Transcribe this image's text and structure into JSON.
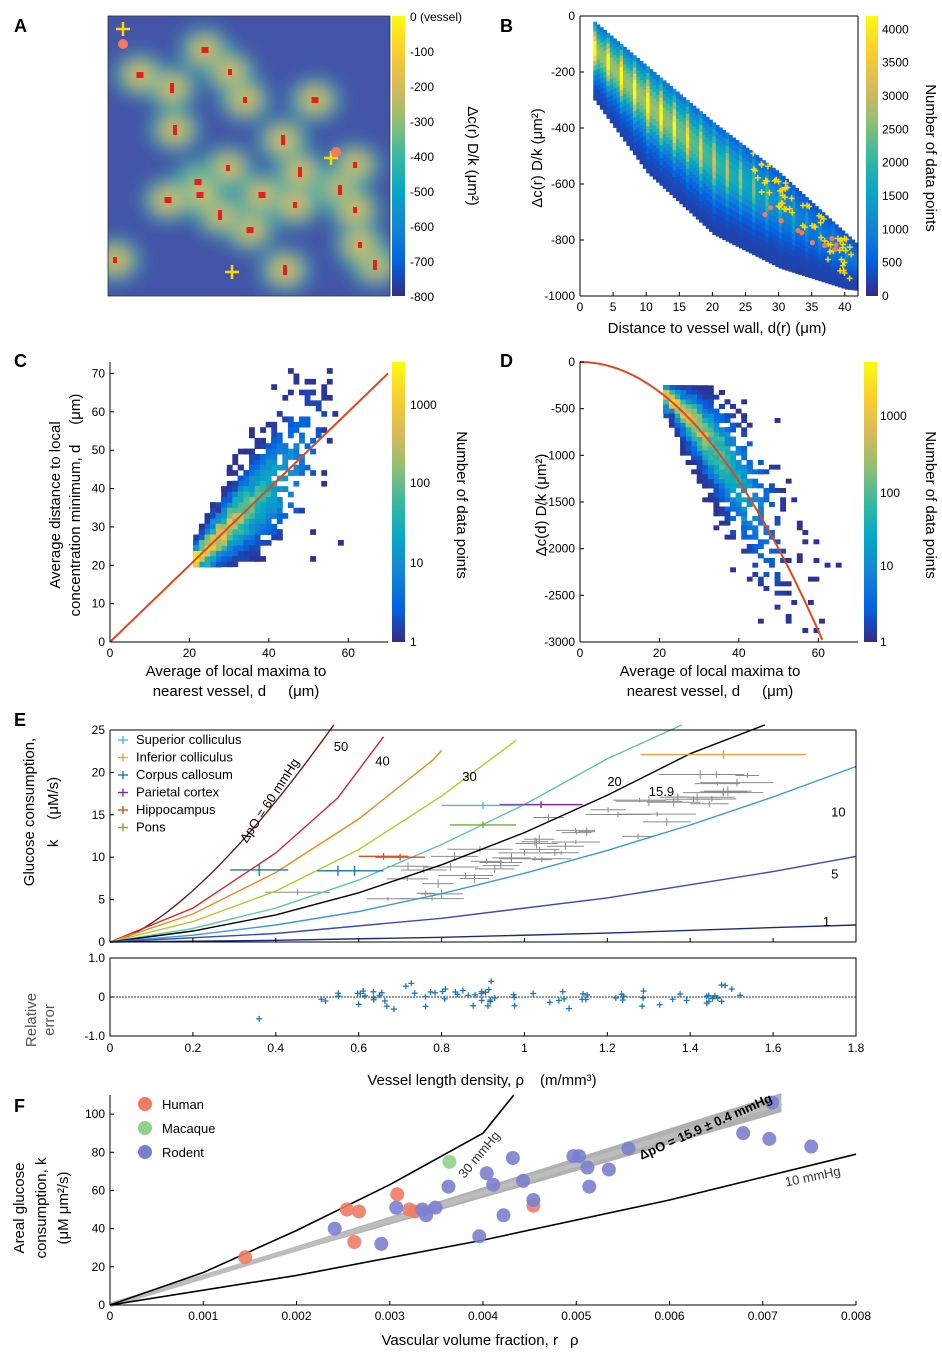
{
  "colors": {
    "parula": [
      "#352a87",
      "#0363e1",
      "#1485d4",
      "#06a7c6",
      "#38b99e",
      "#92bf73",
      "#d9ba56",
      "#fcce2e",
      "#f9fb0e"
    ],
    "orange_line": "#e2461f",
    "cross": "#ffd700",
    "dot": "#f27a5e",
    "human": "#ef7b64",
    "macaque": "#8fd28a",
    "rodent": "#7a80d0",
    "band": "#a9a9a9",
    "error_blue": "#1f77b4",
    "gray_points": "#8c8c8c"
  },
  "panels": {
    "A": {
      "label": "A",
      "colorbar_ticks": [
        "0 (vessel)",
        "-100",
        "-200",
        "-300",
        "-400",
        "-500",
        "-600",
        "-700",
        "-800"
      ],
      "colorbar_label": "Δc(r) D/k (μm²)"
    },
    "B": {
      "label": "B",
      "ylabel": "Δc(r) D/k (μm²)",
      "xlabel": "Distance to vessel wall, d(r) (μm)",
      "colorbar_label": "Number of data points"
    },
    "C": {
      "label": "C",
      "ylabel_1": "Average distance to local",
      "ylabel_2": "concentration minimum, d",
      "ylabel_unit": "(μm)",
      "xlabel_1": "Average of local maxima to",
      "xlabel_2": "nearest vessel, d",
      "xlabel_unit": "(μm)",
      "colorbar_label": "Number of data points"
    },
    "D": {
      "label": "D",
      "ylabel": "Δc(d) D/k (μm²)",
      "xlabel_1": "Average of local maxima to",
      "xlabel_2": "nearest vessel, d",
      "xlabel_unit": "(μm)",
      "colorbar_label": "Number of data points"
    },
    "E": {
      "label": "E",
      "ylabel_1": "Glucose consumption,",
      "ylabel_2": "k",
      "ylabel_unit": "(μM/s)",
      "resid_ylabel_1": "Relative",
      "resid_ylabel_2": "error",
      "xlabel": "Vessel length density,  ρ",
      "xlabel_unit": "(m/mm³)",
      "delta_label": "ΔpO = 60 mmHg",
      "legend": [
        {
          "name": "Superior colliculus",
          "color": "#4dbbd5"
        },
        {
          "name": "Inferior colliculus",
          "color": "#e8a33c"
        },
        {
          "name": "Corpus callosum",
          "color": "#1f77b4"
        },
        {
          "name": "Parietal cortex",
          "color": "#7e2f8e"
        },
        {
          "name": "Hippocampus",
          "color": "#d95319"
        },
        {
          "name": "Pons",
          "color": "#77ac30"
        }
      ]
    },
    "F": {
      "label": "F",
      "ylabel_1": "Areal glucose",
      "ylabel_2": "consumption, k",
      "ylabel_unit": "(μM μm²/s)",
      "xlabel": "Vascular volume fraction, r",
      "xlabel_unit": "ρ",
      "line_labels": [
        "30 mmHg",
        "10  mmHg",
        "ΔpO = 15.9 ± 0.4 mmHg"
      ],
      "legend": [
        {
          "name": "Human",
          "color": "#ef7b64"
        },
        {
          "name": "Macaque",
          "color": "#8fd28a"
        },
        {
          "name": "Rodent",
          "color": "#7a80d0"
        }
      ]
    }
  },
  "chart_data": [
    {
      "panel": "A",
      "type": "heatmap",
      "colorbar": {
        "min": -800,
        "max": 0,
        "ticks": [
          0,
          -100,
          -200,
          -300,
          -400,
          -500,
          -600,
          -700,
          -800
        ],
        "label": "Δc(r) D/k (μm²)"
      },
      "vessels_count": 24,
      "markers": {
        "crosses": 4,
        "dots": 2
      }
    },
    {
      "panel": "B",
      "type": "heatmap",
      "xlabel": "Distance to vessel wall, d(r) (μm)",
      "ylabel": "Δc(r) D/k (μm²)",
      "xlim": [
        0,
        42
      ],
      "ylim": [
        -1000,
        0
      ],
      "xticks": [
        0,
        5,
        10,
        15,
        20,
        25,
        30,
        35,
        40
      ],
      "yticks": [
        0,
        -200,
        -400,
        -600,
        -800,
        -1000
      ],
      "colorbar": {
        "min": 0,
        "max": 4200,
        "ticks": [
          0,
          500,
          1000,
          1500,
          2000,
          2500,
          3000,
          3500,
          4000
        ],
        "label": "Number of data points"
      },
      "band_upper": [
        [
          2,
          -20
        ],
        [
          10,
          -180
        ],
        [
          20,
          -380
        ],
        [
          30,
          -560
        ],
        [
          42,
          -820
        ]
      ],
      "band_lower": [
        [
          2,
          -300
        ],
        [
          10,
          -560
        ],
        [
          20,
          -780
        ],
        [
          30,
          -900
        ],
        [
          40,
          -975
        ],
        [
          42,
          -980
        ]
      ]
    },
    {
      "panel": "C",
      "type": "heatmap",
      "xlim": [
        0,
        70
      ],
      "ylim": [
        0,
        73
      ],
      "xticks": [
        0,
        20,
        40,
        60
      ],
      "yticks": [
        0,
        10,
        20,
        30,
        40,
        50,
        60,
        70
      ],
      "fit_line": [
        [
          0,
          0
        ],
        [
          70,
          70
        ]
      ],
      "colorbar": {
        "scale": "log",
        "ticks": [
          1,
          10,
          100,
          1000
        ],
        "label": "Number of data points"
      }
    },
    {
      "panel": "D",
      "type": "heatmap",
      "xlim": [
        0,
        70
      ],
      "ylim": [
        -3000,
        0
      ],
      "xticks": [
        0,
        20,
        40,
        60
      ],
      "yticks": [
        0,
        -500,
        -1000,
        -1500,
        -2000,
        -2500,
        -3000
      ],
      "fit_curve": "y = -0.8 x^2",
      "colorbar": {
        "scale": "log",
        "ticks": [
          1,
          10,
          100,
          1000
        ],
        "label": "Number of data points"
      }
    },
    {
      "panel": "E",
      "type": "line",
      "xlabel": "Vessel length density,  ρL (m/mm³)",
      "ylabel": "Glucose consumption, kglu (μM/s)",
      "xlim": [
        0,
        1.8
      ],
      "ylim": [
        0,
        25
      ],
      "xticks": [
        0,
        0.2,
        0.4,
        0.6,
        0.8,
        1,
        1.2,
        1.4,
        1.6,
        1.8
      ],
      "yticks": [
        0,
        5,
        10,
        15,
        20,
        25
      ],
      "series": [
        {
          "name": "60",
          "color": "#6b1d1d",
          "k": [
            1,
            27
          ],
          "c": [
            0,
            0.85,
            1.45,
            2.15,
            3,
            4.2,
            5.5
          ]
        },
        {
          "name": "50",
          "color": "#d62728",
          "p": [
            [
              0,
              0
            ],
            [
              0.2,
              4
            ],
            [
              0.4,
              10.5
            ],
            [
              0.55,
              17
            ],
            [
              0.66,
              24.2
            ]
          ]
        },
        {
          "name": "40",
          "color": "#f08a1c",
          "p": [
            [
              0,
              0
            ],
            [
              0.2,
              3.3
            ],
            [
              0.4,
              8.2
            ],
            [
              0.6,
              14.5
            ],
            [
              0.78,
              21.5
            ],
            [
              0.8,
              22.6
            ]
          ]
        },
        {
          "name": "30",
          "color": "#b5c92a",
          "p": [
            [
              0,
              0
            ],
            [
              0.2,
              2.4
            ],
            [
              0.4,
              6
            ],
            [
              0.6,
              10.9
            ],
            [
              0.8,
              17.2
            ],
            [
              0.98,
              23.8
            ]
          ]
        },
        {
          "name": "20",
          "color": "#5ec4b0",
          "p": [
            [
              0,
              0
            ],
            [
              0.2,
              1.6
            ],
            [
              0.4,
              4
            ],
            [
              0.6,
              7.3
            ],
            [
              0.8,
              11.5
            ],
            [
              1.0,
              16.2
            ],
            [
              1.2,
              21.6
            ],
            [
              1.38,
              26
            ]
          ]
        },
        {
          "name": "15.9",
          "color": "#000000",
          "p": [
            [
              0,
              0
            ],
            [
              0.2,
              1.3
            ],
            [
              0.4,
              3.2
            ],
            [
              0.6,
              5.8
            ],
            [
              0.8,
              9.1
            ],
            [
              1.0,
              12.9
            ],
            [
              1.2,
              17.3
            ],
            [
              1.4,
              22.2
            ],
            [
              1.58,
              26.6
            ]
          ]
        },
        {
          "name": "10",
          "color": "#3b9ad9",
          "p": [
            [
              0,
              0
            ],
            [
              0.2,
              0.8
            ],
            [
              0.4,
              2
            ],
            [
              0.6,
              3.6
            ],
            [
              0.8,
              5.7
            ],
            [
              1.0,
              8.1
            ],
            [
              1.2,
              10.8
            ],
            [
              1.4,
              13.8
            ],
            [
              1.6,
              17.1
            ],
            [
              1.8,
              20.7
            ]
          ]
        },
        {
          "name": "5",
          "color": "#3b4ab4",
          "p": [
            [
              0,
              0
            ],
            [
              0.4,
              1
            ],
            [
              0.8,
              2.8
            ],
            [
              1.2,
              5.2
            ],
            [
              1.6,
              8.3
            ],
            [
              1.8,
              10.1
            ]
          ]
        },
        {
          "name": "1",
          "color": "#1c2a80",
          "p": [
            [
              0,
              0
            ],
            [
              0.4,
              0.2
            ],
            [
              0.8,
              0.55
            ],
            [
              1.2,
              1.05
            ],
            [
              1.6,
              1.7
            ],
            [
              1.8,
              2.0
            ]
          ]
        }
      ],
      "points": [
        {
          "x": 0.36,
          "y": 8.5,
          "c": "#1f77b4",
          "ex": 0.07,
          "ey": 0.7
        },
        {
          "x": 0.55,
          "y": 8.4,
          "c": "#1f77b4",
          "ex": 0.05,
          "ey": 0.6
        },
        {
          "x": 0.59,
          "y": 8.4,
          "c": "#1f77b4",
          "ex": 0.07,
          "ey": 0.6
        },
        {
          "x": 0.66,
          "y": 10.1,
          "c": "#d95319",
          "ex": 0.06,
          "ey": 0.4
        },
        {
          "x": 0.7,
          "y": 10.0,
          "c": "#d95319",
          "ex": 0.06,
          "ey": 0.4
        },
        {
          "x": 1.04,
          "y": 16.2,
          "c": "#7e2f8e",
          "ex": 0.1,
          "ey": 0.4
        },
        {
          "x": 0.9,
          "y": 13.8,
          "c": "#77ac30",
          "ex": 0.08,
          "ey": 0.4
        },
        {
          "x": 1.48,
          "y": 22.1,
          "c": "#e8a33c",
          "ex": 0.2,
          "ey": 0.5
        },
        {
          "x": 0.9,
          "y": 16.1,
          "c": "#4dbbd5",
          "ex": 0.1,
          "ey": 0.4
        }
      ],
      "resid_ylim": [
        -1,
        1
      ],
      "resid_yticks": [
        1,
        0,
        -1
      ]
    },
    {
      "panel": "F",
      "type": "scatter",
      "xlabel": "Vascular volume fraction, rc² ρL",
      "ylabel": "Areal glucose consumption, kglu rc² (μM μm²/s)",
      "xlim": [
        0,
        0.008
      ],
      "ylim": [
        0,
        110
      ],
      "xticks": [
        0,
        0.001,
        0.002,
        0.003,
        0.004,
        0.005,
        0.006,
        0.007,
        0.008
      ],
      "yticks": [
        0,
        20,
        40,
        60,
        80,
        100
      ],
      "series": [
        {
          "name": "Human",
          "x": [
            0.00145,
            0.00254,
            0.00267,
            0.00262,
            0.00308,
            0.00321,
            0.00327,
            0.00454
          ],
          "y": [
            25,
            50,
            49,
            33,
            58,
            50,
            49,
            52
          ]
        },
        {
          "name": "Macaque",
          "x": [
            0.00364
          ],
          "y": [
            75
          ]
        },
        {
          "name": "Rodent",
          "x": [
            0.00241,
            0.00291,
            0.00307,
            0.00335,
            0.00339,
            0.00349,
            0.00363,
            0.00396,
            0.00404,
            0.00411,
            0.00422,
            0.00432,
            0.00443,
            0.00454,
            0.00497,
            0.00503,
            0.00512,
            0.00514,
            0.00535,
            0.00556,
            0.00679,
            0.00707,
            0.0071,
            0.00752
          ],
          "y": [
            40,
            32,
            51,
            50,
            47,
            51,
            62,
            36,
            69,
            63,
            47,
            77,
            65,
            55,
            78,
            78,
            72,
            62,
            71,
            82,
            90,
            87,
            106,
            83
          ]
        }
      ],
      "lines": [
        {
          "name": "30 mmHg",
          "p": [
            [
              0,
              0
            ],
            [
              0.001,
              17
            ],
            [
              0.002,
              39
            ],
            [
              0.003,
              63
            ],
            [
              0.004,
              90
            ],
            [
              0.00433,
              110
            ]
          ]
        },
        {
          "name": "15.9",
          "p": [
            [
              0,
              0
            ],
            [
              0.0072,
              107
            ]
          ]
        },
        {
          "name": "10 mmHg",
          "p": [
            [
              0,
              0
            ],
            [
              0.002,
              15.5
            ],
            [
              0.004,
              34
            ],
            [
              0.006,
              55
            ],
            [
              0.008,
              79
            ]
          ]
        }
      ]
    }
  ]
}
